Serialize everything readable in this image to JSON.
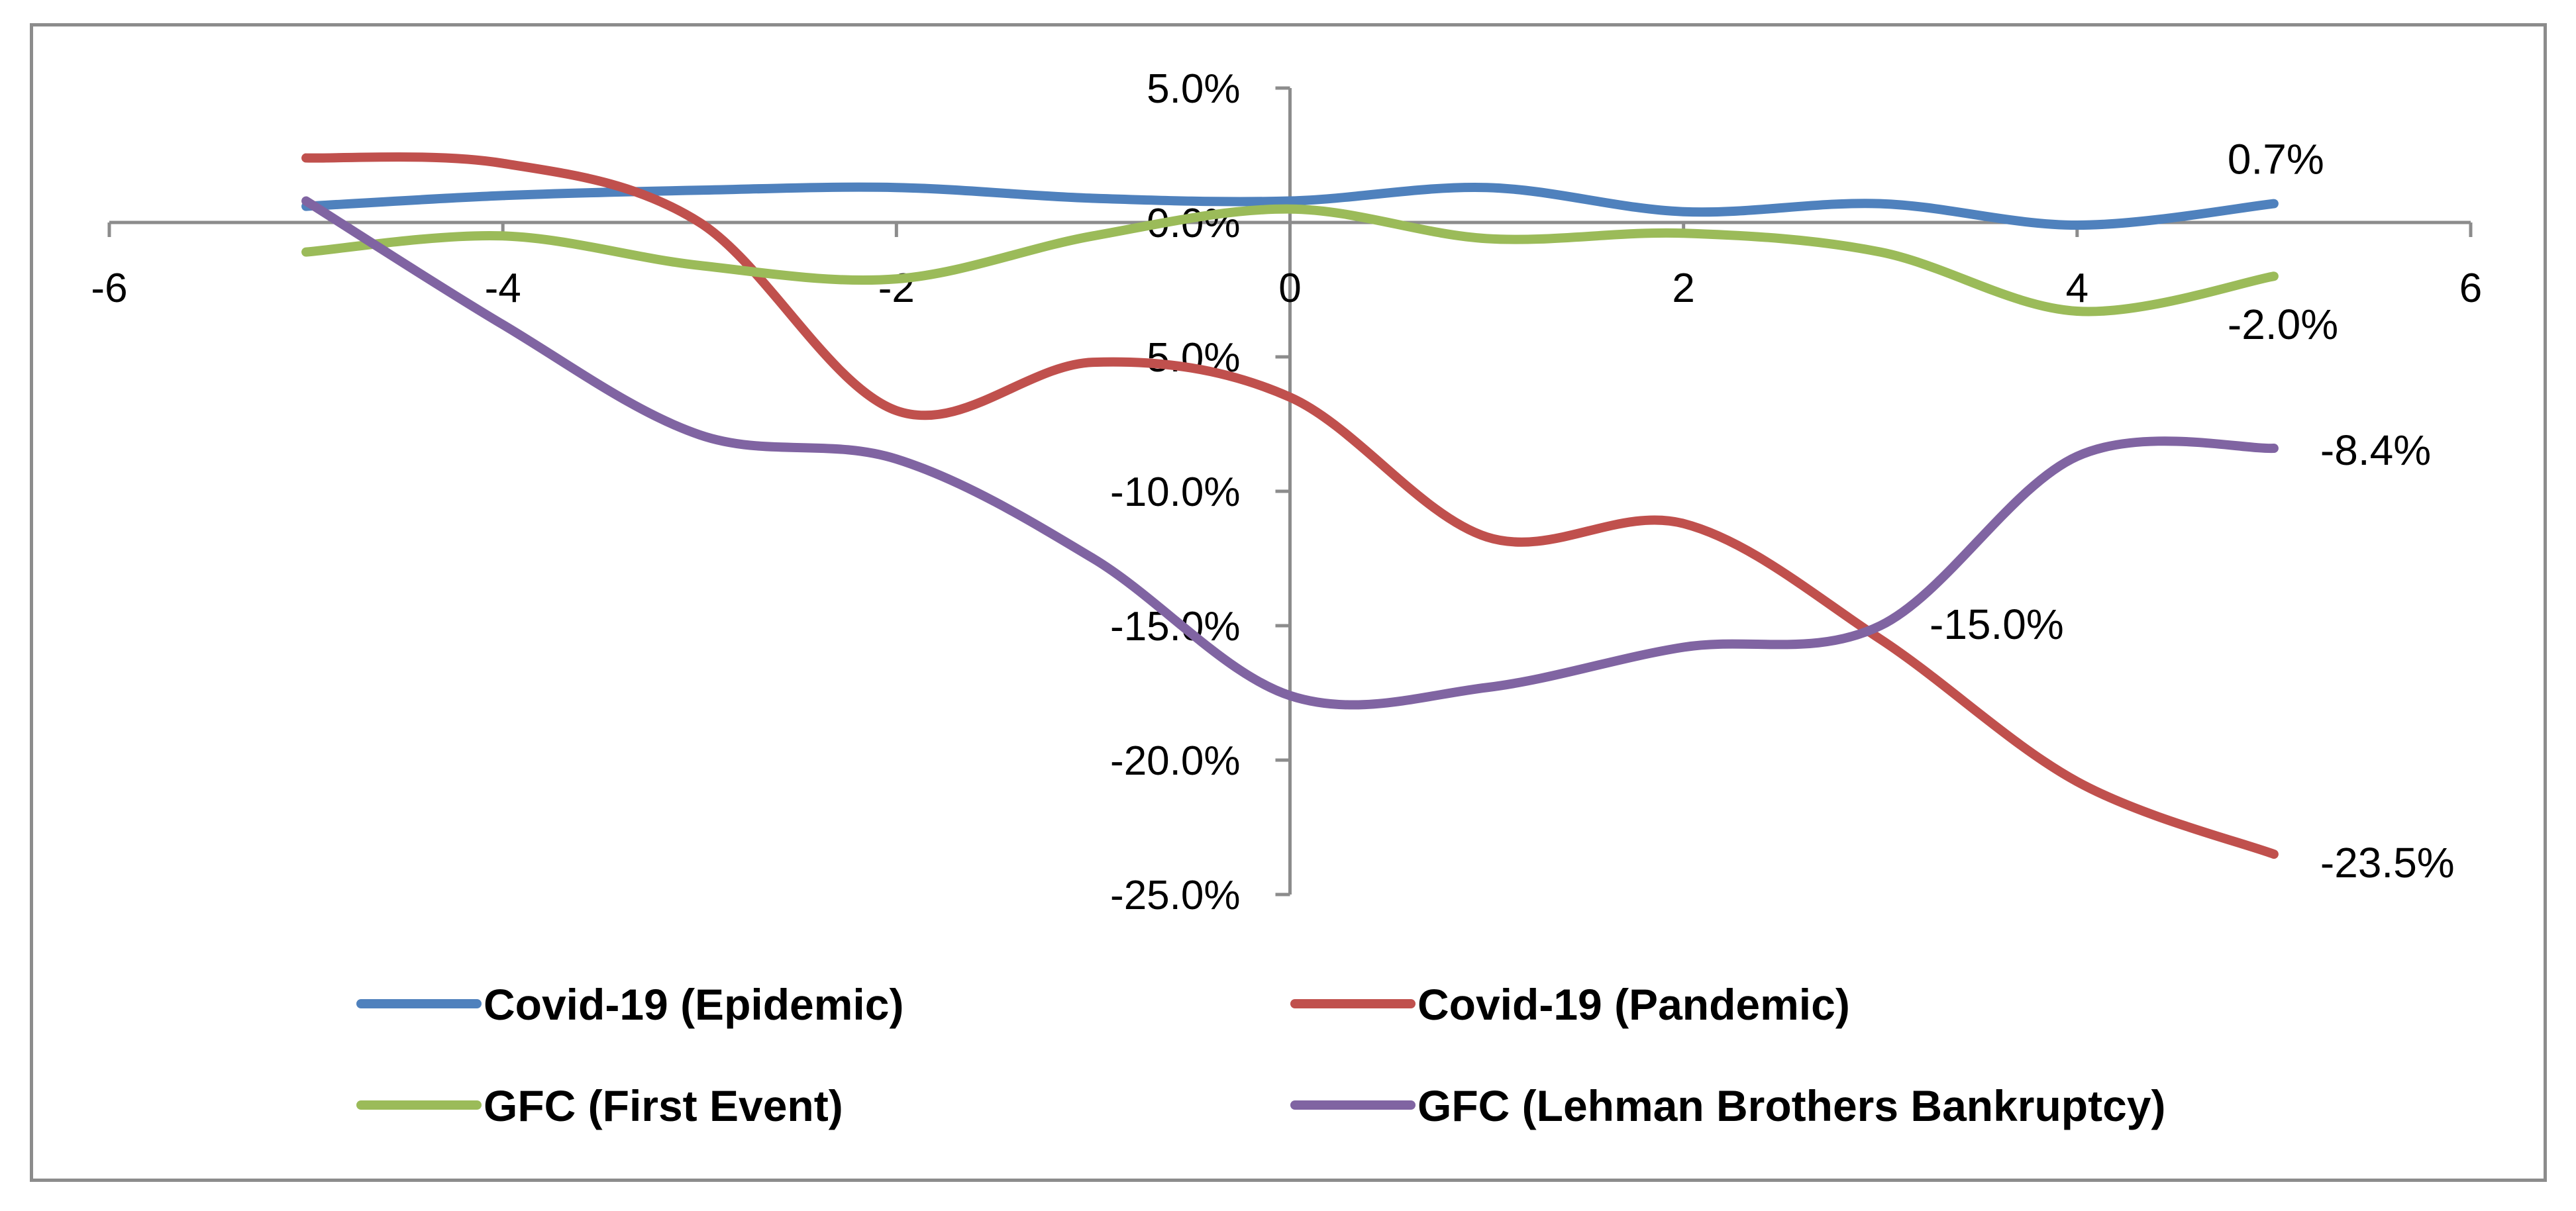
{
  "chart_data": {
    "type": "line",
    "title": "",
    "xlabel": "",
    "ylabel": "",
    "xlim": [
      -6,
      6
    ],
    "ylim": [
      -25,
      5
    ],
    "x_ticks": [
      "-6",
      "-4",
      "-2",
      "0",
      "2",
      "4",
      "6"
    ],
    "y_ticks": [
      "5.0%",
      "0.0%",
      "-5.0%",
      "-10.0%",
      "-15.0%",
      "-20.0%",
      "-25.0%"
    ],
    "x": [
      -5,
      -4,
      -3,
      -2,
      -1,
      0,
      1,
      2,
      3,
      4,
      5
    ],
    "series": [
      {
        "name": "Covid-19 (Epidemic)",
        "color": "#4F81BD",
        "values": [
          0.6,
          1.0,
          1.2,
          1.3,
          0.9,
          0.8,
          1.3,
          0.4,
          0.7,
          -0.1,
          0.7
        ],
        "end_label": "0.7%"
      },
      {
        "name": "Covid-19 (Pandemic)",
        "color": "#C0504D",
        "values": [
          2.4,
          2.2,
          0.0,
          -7.0,
          -5.2,
          -6.5,
          -11.7,
          -11.2,
          -15.5,
          -20.8,
          -23.5
        ],
        "end_label": "-23.5%"
      },
      {
        "name": "GFC (First Event)",
        "color": "#9BBB59",
        "values": [
          -1.1,
          -0.5,
          -1.6,
          -2.1,
          -0.5,
          0.5,
          -0.6,
          -0.4,
          -1.1,
          -3.3,
          -2.0
        ],
        "end_label": "-2.0%"
      },
      {
        "name": "GFC (Lehman Brothers Bankruptcy)",
        "color": "#8064A2",
        "values": [
          0.8,
          -3.8,
          -7.9,
          -8.8,
          -12.5,
          -17.6,
          -17.3,
          -15.8,
          -15.0,
          -8.7,
          -8.4
        ],
        "end_label": "-8.4%"
      }
    ],
    "annotations": [
      "-15.0%"
    ],
    "legend_position": "bottom",
    "grid": false
  }
}
